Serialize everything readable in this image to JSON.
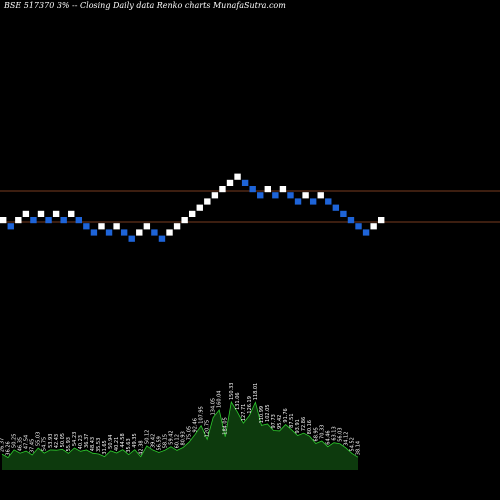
{
  "title": "BSE 517370  3% -- Closing Daily data Renko charts MunafaSutra.com",
  "colors": {
    "background": "#000000",
    "up_brick": "#ffffff",
    "down_brick": "#1e64d8",
    "reference_line": "#a0522d",
    "volume_area": "#0d3a0d",
    "volume_line": "#2ecc2e"
  },
  "chart_data": [
    {
      "type": "renko",
      "brick_directions": [
        "up",
        "down",
        "up",
        "up",
        "down",
        "up",
        "down",
        "up",
        "down",
        "up",
        "down",
        "down",
        "down",
        "up",
        "down",
        "up",
        "down",
        "down",
        "up",
        "up",
        "down",
        "down",
        "up",
        "up",
        "up",
        "up",
        "up",
        "up",
        "up",
        "up",
        "up",
        "up",
        "down",
        "down",
        "down",
        "up",
        "down",
        "up",
        "down",
        "down",
        "up",
        "down",
        "up",
        "down",
        "down",
        "down",
        "down",
        "down",
        "down",
        "up",
        "up"
      ],
      "reference_lines": [
        "upper",
        "lower"
      ]
    },
    {
      "type": "area",
      "series": [
        {
          "values": [
            39.81,
            31.07,
            50.25,
            41.93,
            47.34,
            37.52,
            55.03,
            42.31,
            50.24,
            49.54,
            51.77,
            41.63,
            55.09,
            46.78,
            50.14,
            42.07,
            40.02,
            33.52,
            47.96,
            42.52,
            50.98,
            38.44,
            50.86,
            33.19,
            60.25,
            50.02,
            43.88,
            49.41,
            58.34,
            49.04,
            56.28,
            69.61,
            89.03,
            110.94,
            76.96,
            131.71,
            150.14,
            83.29,
            170.26,
            145.45,
            117.32,
            136.21,
            169.57,
            111.69,
            115.26,
            98.95,
            97.79,
            113.74,
            100.64,
            86.41,
            92.19,
            84.36,
            66.42,
            72.68,
            58.28,
            68.41,
            65.62,
            55.33,
            41.45,
            32.02
          ]
        }
      ],
      "value_labels": [
        "26.37",
        "36.26",
        "50.25",
        "46.35",
        "47.54",
        "37.45",
        "55.03",
        "54.75",
        "53.93",
        "42.43",
        "50.05",
        "55.93",
        "54.23",
        "40.23",
        "36.37",
        "48.43",
        "35.53",
        "31.65",
        "50.94",
        "40.21",
        "44.58",
        "35.63",
        "49.35",
        "42.38",
        "50.12",
        "39.42",
        "56.59",
        "58.15",
        "59.42",
        "60.12",
        "80.93",
        "75.05",
        "92.46",
        "107.95",
        "120.75",
        "134.05",
        "160.04",
        "184.05",
        "150.33",
        "131.06",
        "127.71",
        "126.19",
        "118.01",
        "110.99",
        "102.05",
        "97.73",
        "95.42",
        "91.76",
        "87.51",
        "93.91",
        "72.86",
        "80.16",
        "68.95",
        "70.33",
        "64.46",
        "63.13",
        "56.03",
        "34.12",
        "54.52",
        "38.14"
      ]
    }
  ]
}
